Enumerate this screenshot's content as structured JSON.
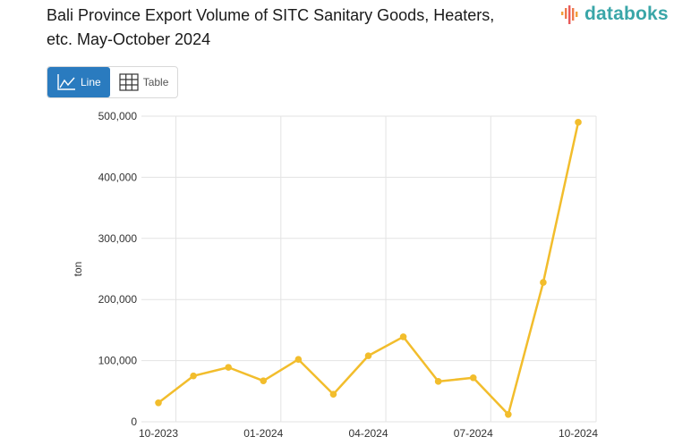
{
  "header": {
    "title": "Bali Province Export Volume of SITC Sanitary Goods, Heaters, etc. May-October 2024",
    "logo_text": "databoks"
  },
  "view_toggle": {
    "line_label": "Line",
    "table_label": "Table",
    "active": "Line"
  },
  "colors": {
    "series": "#f2bd2c",
    "accent": "#2a7bbf",
    "logo_teal": "#3aa6a8",
    "grid": "#e3e3e3"
  },
  "chart_data": {
    "type": "line",
    "title": "Bali Province Export Volume of SITC Sanitary Goods, Heaters, etc. May-October 2024",
    "xlabel": "",
    "ylabel": "ton",
    "x": [
      "10-2023",
      "11-2023",
      "12-2023",
      "01-2024",
      "02-2024",
      "03-2024",
      "04-2024",
      "05-2024",
      "06-2024",
      "07-2024",
      "08-2024",
      "09-2024",
      "10-2024"
    ],
    "x_tick_labels": [
      "10-2023",
      "01-2024",
      "04-2024",
      "07-2024",
      "10-2024"
    ],
    "y_tick_labels": [
      "0",
      "100,000",
      "200,000",
      "300,000",
      "400,000",
      "500,000"
    ],
    "ylim": [
      0,
      500000
    ],
    "grid": true,
    "legend": "none",
    "series": [
      {
        "name": "Export Volume (ton)",
        "values": [
          31000,
          75000,
          89000,
          67000,
          102000,
          45000,
          108000,
          139000,
          66000,
          72000,
          12000,
          228000,
          490000
        ]
      }
    ]
  }
}
